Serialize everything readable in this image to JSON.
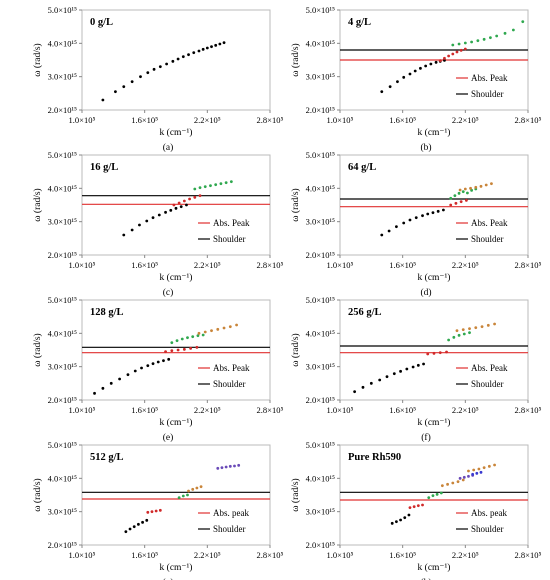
{
  "figure": {
    "x_ticks": [
      "1.0×10⁵",
      "1.6×10⁵",
      "2.2×10⁵",
      "2.8×10⁵"
    ],
    "y_ticks": [
      "2.0×10¹⁵",
      "3.0×10¹⁵",
      "4.0×10¹⁵",
      "5.0×10¹⁵"
    ],
    "xlabel": "k (cm⁻¹)",
    "ylabel": "ω (rad/s)",
    "colors": {
      "black": "#000000",
      "red": "#d02a2a",
      "green": "#2fa84f",
      "orange": "#c9853a",
      "purple": "#6a4ab8",
      "blue": "#3a3ad0",
      "shoulder_line": "#000000",
      "peak_line": "#e03030"
    }
  },
  "chart_data": [
    {
      "type": "scatter",
      "panel": "(a)",
      "tag": "0 g/L",
      "xlabel": "k (cm⁻¹)",
      "ylabel": "ω (rad/s)",
      "xlim": [
        100000,
        280000
      ],
      "ylim": [
        2000000000000000.0,
        5000000000000000.0
      ],
      "legend": [],
      "hlines": [],
      "series": [
        {
          "color": "black",
          "x": [
            120000,
            132000,
            140000,
            148000,
            156000,
            163000,
            169000,
            175000,
            181000,
            187000,
            192000,
            197000,
            202000,
            207000,
            212000,
            216000,
            220000,
            224000,
            228000,
            232000,
            236000
          ],
          "y": [
            2300000000000000.0,
            2550000000000000.0,
            2700000000000000.0,
            2850000000000000.0,
            3000000000000000.0,
            3120000000000000.0,
            3220000000000000.0,
            3300000000000000.0,
            3380000000000000.0,
            3460000000000000.0,
            3530000000000000.0,
            3600000000000000.0,
            3660000000000000.0,
            3720000000000000.0,
            3770000000000000.0,
            3820000000000000.0,
            3860000000000000.0,
            3900000000000000.0,
            3940000000000000.0,
            3980000000000000.0,
            4020000000000000.0
          ]
        }
      ]
    },
    {
      "type": "scatter",
      "panel": "(b)",
      "tag": "4 g/L",
      "xlabel": "k (cm⁻¹)",
      "ylabel": "ω (rad/s)",
      "xlim": [
        100000,
        280000
      ],
      "ylim": [
        2000000000000000.0,
        5000000000000000.0
      ],
      "legend": [
        "Abs. Peak",
        "Shoulder"
      ],
      "hlines": [
        {
          "label": "Abs. Peak",
          "y": 3500000000000000.0,
          "color": "peak_line"
        },
        {
          "label": "Shoulder",
          "y": 3800000000000000.0,
          "color": "shoulder_line"
        }
      ],
      "series": [
        {
          "color": "black",
          "x": [
            140000,
            148000,
            155000,
            161000,
            167000,
            172000,
            177000,
            182000,
            187000,
            192000,
            196000,
            200000
          ],
          "y": [
            2550000000000000.0,
            2700000000000000.0,
            2850000000000000.0,
            2980000000000000.0,
            3080000000000000.0,
            3170000000000000.0,
            3250000000000000.0,
            3320000000000000.0,
            3380000000000000.0,
            3430000000000000.0,
            3460000000000000.0,
            3490000000000000.0
          ]
        },
        {
          "color": "red",
          "x": [
            196000,
            200000,
            204000,
            208000,
            212000,
            216000,
            220000
          ],
          "y": [
            3480000000000000.0,
            3550000000000000.0,
            3620000000000000.0,
            3680000000000000.0,
            3740000000000000.0,
            3790000000000000.0,
            3830000000000000.0
          ]
        },
        {
          "color": "green",
          "x": [
            208000,
            214000,
            220000,
            226000,
            232000,
            238000,
            244000,
            250000,
            258000,
            266000,
            275000
          ],
          "y": [
            3950000000000000.0,
            3980000000000000.0,
            4010000000000000.0,
            4040000000000000.0,
            4080000000000000.0,
            4120000000000000.0,
            4170000000000000.0,
            4220000000000000.0,
            4300000000000000.0,
            4400000000000000.0,
            4650000000000000.0
          ]
        }
      ]
    },
    {
      "type": "scatter",
      "panel": "(c)",
      "tag": "16 g/L",
      "xlabel": "k (cm⁻¹)",
      "ylabel": "ω (rad/s)",
      "xlim": [
        100000,
        280000
      ],
      "ylim": [
        2000000000000000.0,
        5000000000000000.0
      ],
      "legend": [
        "Abs. Peak",
        "Shoulder"
      ],
      "hlines": [
        {
          "label": "Abs. Peak",
          "y": 3520000000000000.0,
          "color": "peak_line"
        },
        {
          "label": "Shoulder",
          "y": 3780000000000000.0,
          "color": "shoulder_line"
        }
      ],
      "series": [
        {
          "color": "black",
          "x": [
            140000,
            148000,
            155000,
            162000,
            168000,
            174000,
            180000,
            185000,
            190000,
            195000,
            200000
          ],
          "y": [
            2600000000000000.0,
            2750000000000000.0,
            2900000000000000.0,
            3020000000000000.0,
            3120000000000000.0,
            3200000000000000.0,
            3280000000000000.0,
            3340000000000000.0,
            3400000000000000.0,
            3450000000000000.0,
            3500000000000000.0
          ]
        },
        {
          "color": "red",
          "x": [
            188000,
            193000,
            198000,
            203000,
            208000,
            213000
          ],
          "y": [
            3500000000000000.0,
            3560000000000000.0,
            3620000000000000.0,
            3680000000000000.0,
            3730000000000000.0,
            3780000000000000.0
          ]
        },
        {
          "color": "green",
          "x": [
            208000,
            213000,
            218000,
            223000,
            228000,
            233000,
            238000,
            243000
          ],
          "y": [
            3980000000000000.0,
            4020000000000000.0,
            4050000000000000.0,
            4080000000000000.0,
            4110000000000000.0,
            4140000000000000.0,
            4170000000000000.0,
            4200000000000000.0
          ]
        }
      ]
    },
    {
      "type": "scatter",
      "panel": "(d)",
      "tag": "64 g/L",
      "xlabel": "k (cm⁻¹)",
      "ylabel": "ω (rad/s)",
      "xlim": [
        100000,
        280000
      ],
      "ylim": [
        2000000000000000.0,
        5000000000000000.0
      ],
      "legend": [
        "Abs. Peak",
        "Shoulder"
      ],
      "hlines": [
        {
          "label": "Abs. Peak",
          "y": 3450000000000000.0,
          "color": "peak_line"
        },
        {
          "label": "Shoulder",
          "y": 3680000000000000.0,
          "color": "shoulder_line"
        }
      ],
      "series": [
        {
          "color": "black",
          "x": [
            140000,
            147000,
            154000,
            161000,
            167000,
            173000,
            179000,
            184000,
            189000,
            194000,
            199000
          ],
          "y": [
            2600000000000000.0,
            2720000000000000.0,
            2850000000000000.0,
            2960000000000000.0,
            3050000000000000.0,
            3120000000000000.0,
            3180000000000000.0,
            3230000000000000.0,
            3270000000000000.0,
            3310000000000000.0,
            3350000000000000.0
          ]
        },
        {
          "color": "red",
          "x": [
            206000,
            211000,
            216000,
            221000
          ],
          "y": [
            3500000000000000.0,
            3550000000000000.0,
            3600000000000000.0,
            3640000000000000.0
          ]
        },
        {
          "color": "green",
          "x": [
            206000,
            210000,
            214000,
            218000,
            222000,
            226000,
            230000
          ],
          "y": [
            3700000000000000.0,
            3780000000000000.0,
            3850000000000000.0,
            3900000000000000.0,
            3860000000000000.0,
            3940000000000000.0,
            3980000000000000.0
          ]
        },
        {
          "color": "orange",
          "x": [
            215000,
            220000,
            225000,
            230000,
            235000,
            240000,
            245000
          ],
          "y": [
            3950000000000000.0,
            3980000000000000.0,
            4000000000000000.0,
            4030000000000000.0,
            4060000000000000.0,
            4100000000000000.0,
            4140000000000000.0
          ]
        }
      ]
    },
    {
      "type": "scatter",
      "panel": "(e)",
      "tag": "128 g/L",
      "xlabel": "k (cm⁻¹)",
      "ylabel": "ω (rad/s)",
      "xlim": [
        100000,
        280000
      ],
      "ylim": [
        2000000000000000.0,
        5000000000000000.0
      ],
      "legend": [
        "Abs. Peak",
        "Shoulder"
      ],
      "hlines": [
        {
          "label": "Abs. Peak",
          "y": 3420000000000000.0,
          "color": "peak_line"
        },
        {
          "label": "Shoulder",
          "y": 3580000000000000.0,
          "color": "shoulder_line"
        }
      ],
      "series": [
        {
          "color": "black",
          "x": [
            112000,
            120000,
            128000,
            136000,
            144000,
            151000,
            157000,
            163000,
            168000,
            173000,
            178000,
            183000
          ],
          "y": [
            2200000000000000.0,
            2350000000000000.0,
            2500000000000000.0,
            2630000000000000.0,
            2760000000000000.0,
            2870000000000000.0,
            2960000000000000.0,
            3030000000000000.0,
            3090000000000000.0,
            3140000000000000.0,
            3180000000000000.0,
            3220000000000000.0
          ]
        },
        {
          "color": "red",
          "x": [
            180000,
            186000,
            192000,
            198000,
            204000,
            210000
          ],
          "y": [
            3450000000000000.0,
            3480000000000000.0,
            3500000000000000.0,
            3520000000000000.0,
            3550000000000000.0,
            3580000000000000.0
          ]
        },
        {
          "color": "green",
          "x": [
            186000,
            191000,
            196000,
            201000,
            206000,
            211000,
            216000
          ],
          "y": [
            3720000000000000.0,
            3780000000000000.0,
            3830000000000000.0,
            3870000000000000.0,
            3900000000000000.0,
            3930000000000000.0,
            3950000000000000.0
          ]
        },
        {
          "color": "orange",
          "x": [
            212000,
            218000,
            224000,
            230000,
            236000,
            242000,
            248000
          ],
          "y": [
            4000000000000000.0,
            4040000000000000.0,
            4080000000000000.0,
            4120000000000000.0,
            4160000000000000.0,
            4200000000000000.0,
            4250000000000000.0
          ]
        }
      ]
    },
    {
      "type": "scatter",
      "panel": "(f)",
      "tag": "256 g/L",
      "xlabel": "k (cm⁻¹)",
      "ylabel": "ω (rad/s)",
      "xlim": [
        100000,
        280000
      ],
      "ylim": [
        2000000000000000.0,
        5000000000000000.0
      ],
      "legend": [
        "Abs. Peak",
        "Shoulder"
      ],
      "hlines": [
        {
          "label": "Abs. Peak",
          "y": 3420000000000000.0,
          "color": "peak_line"
        },
        {
          "label": "Shoulder",
          "y": 3620000000000000.0,
          "color": "shoulder_line"
        }
      ],
      "series": [
        {
          "color": "black",
          "x": [
            114000,
            122000,
            130000,
            138000,
            145000,
            152000,
            158000,
            164000,
            170000,
            175000,
            180000
          ],
          "y": [
            2250000000000000.0,
            2380000000000000.0,
            2500000000000000.0,
            2600000000000000.0,
            2700000000000000.0,
            2790000000000000.0,
            2860000000000000.0,
            2930000000000000.0,
            2990000000000000.0,
            3040000000000000.0,
            3080000000000000.0
          ]
        },
        {
          "color": "red",
          "x": [
            184000,
            190000,
            196000,
            202000
          ],
          "y": [
            3380000000000000.0,
            3400000000000000.0,
            3420000000000000.0,
            3440000000000000.0
          ]
        },
        {
          "color": "green",
          "x": [
            204000,
            209000,
            214000,
            219000,
            224000
          ],
          "y": [
            3800000000000000.0,
            3880000000000000.0,
            3940000000000000.0,
            3980000000000000.0,
            4020000000000000.0
          ]
        },
        {
          "color": "orange",
          "x": [
            212000,
            218000,
            224000,
            230000,
            236000,
            242000,
            248000
          ],
          "y": [
            4080000000000000.0,
            4110000000000000.0,
            4140000000000000.0,
            4170000000000000.0,
            4200000000000000.0,
            4240000000000000.0,
            4280000000000000.0
          ]
        }
      ]
    },
    {
      "type": "scatter",
      "panel": "(g)",
      "tag": "512 g/L",
      "xlabel": "k (cm⁻¹)",
      "ylabel": "ω (rad/s)",
      "xlim": [
        100000,
        280000
      ],
      "ylim": [
        2000000000000000.0,
        5000000000000000.0
      ],
      "legend": [
        "Abs. peak",
        "Shoulder"
      ],
      "hlines": [
        {
          "label": "Abs. peak",
          "y": 3380000000000000.0,
          "color": "peak_line"
        },
        {
          "label": "Shoulder",
          "y": 3580000000000000.0,
          "color": "shoulder_line"
        }
      ],
      "series": [
        {
          "color": "black",
          "x": [
            142000,
            146000,
            150000,
            154000,
            158000,
            162000
          ],
          "y": [
            2400000000000000.0,
            2480000000000000.0,
            2550000000000000.0,
            2620000000000000.0,
            2680000000000000.0,
            2740000000000000.0
          ]
        },
        {
          "color": "red",
          "x": [
            163000,
            167000,
            171000,
            175000
          ],
          "y": [
            2980000000000000.0,
            3000000000000000.0,
            3020000000000000.0,
            3040000000000000.0
          ]
        },
        {
          "color": "green",
          "x": [
            193000,
            197000,
            201000
          ],
          "y": [
            3420000000000000.0,
            3470000000000000.0,
            3500000000000000.0
          ]
        },
        {
          "color": "orange",
          "x": [
            202000,
            206000,
            210000,
            214000
          ],
          "y": [
            3620000000000000.0,
            3670000000000000.0,
            3710000000000000.0,
            3750000000000000.0
          ]
        },
        {
          "color": "purple",
          "x": [
            230000,
            234000,
            238000,
            242000,
            246000,
            250000
          ],
          "y": [
            4300000000000000.0,
            4320000000000000.0,
            4340000000000000.0,
            4360000000000000.0,
            4370000000000000.0,
            4390000000000000.0
          ]
        }
      ]
    },
    {
      "type": "scatter",
      "panel": "(h)",
      "tag": "Pure Rh590",
      "xlabel": "k (cm⁻¹)",
      "ylabel": "ω (rad/s)",
      "xlim": [
        100000,
        280000
      ],
      "ylim": [
        2000000000000000.0,
        5000000000000000.0
      ],
      "legend": [
        "Abs. peak",
        "Shoulder"
      ],
      "hlines": [
        {
          "label": "Abs. peak",
          "y": 3350000000000000.0,
          "color": "peak_line"
        },
        {
          "label": "Shoulder",
          "y": 3580000000000000.0,
          "color": "shoulder_line"
        }
      ],
      "series": [
        {
          "color": "black",
          "x": [
            150000,
            154000,
            158000,
            162000,
            166000
          ],
          "y": [
            2650000000000000.0,
            2700000000000000.0,
            2750000000000000.0,
            2820000000000000.0,
            2900000000000000.0
          ]
        },
        {
          "color": "red",
          "x": [
            167000,
            171000,
            175000,
            179000
          ],
          "y": [
            3120000000000000.0,
            3150000000000000.0,
            3180000000000000.0,
            3200000000000000.0
          ]
        },
        {
          "color": "green",
          "x": [
            185000,
            189000,
            193000,
            197000
          ],
          "y": [
            3420000000000000.0,
            3480000000000000.0,
            3520000000000000.0,
            3560000000000000.0
          ]
        },
        {
          "color": "orange",
          "x": [
            198000,
            203000,
            208000,
            213000,
            218000,
            223000,
            228000,
            233000,
            238000,
            243000,
            248000
          ],
          "y": [
            3780000000000000.0,
            3820000000000000.0,
            3860000000000000.0,
            3900000000000000.0,
            3950000000000000.0,
            4220000000000000.0,
            4250000000000000.0,
            4280000000000000.0,
            4320000000000000.0,
            4360000000000000.0,
            4400000000000000.0
          ]
        },
        {
          "color": "purple",
          "x": [
            215000,
            219000,
            223000,
            227000
          ],
          "y": [
            4000000000000000.0,
            4030000000000000.0,
            4060000000000000.0,
            4090000000000000.0
          ]
        },
        {
          "color": "blue",
          "x": [
            227000,
            231000,
            235000
          ],
          "y": [
            4120000000000000.0,
            4150000000000000.0,
            4180000000000000.0
          ]
        }
      ]
    }
  ]
}
